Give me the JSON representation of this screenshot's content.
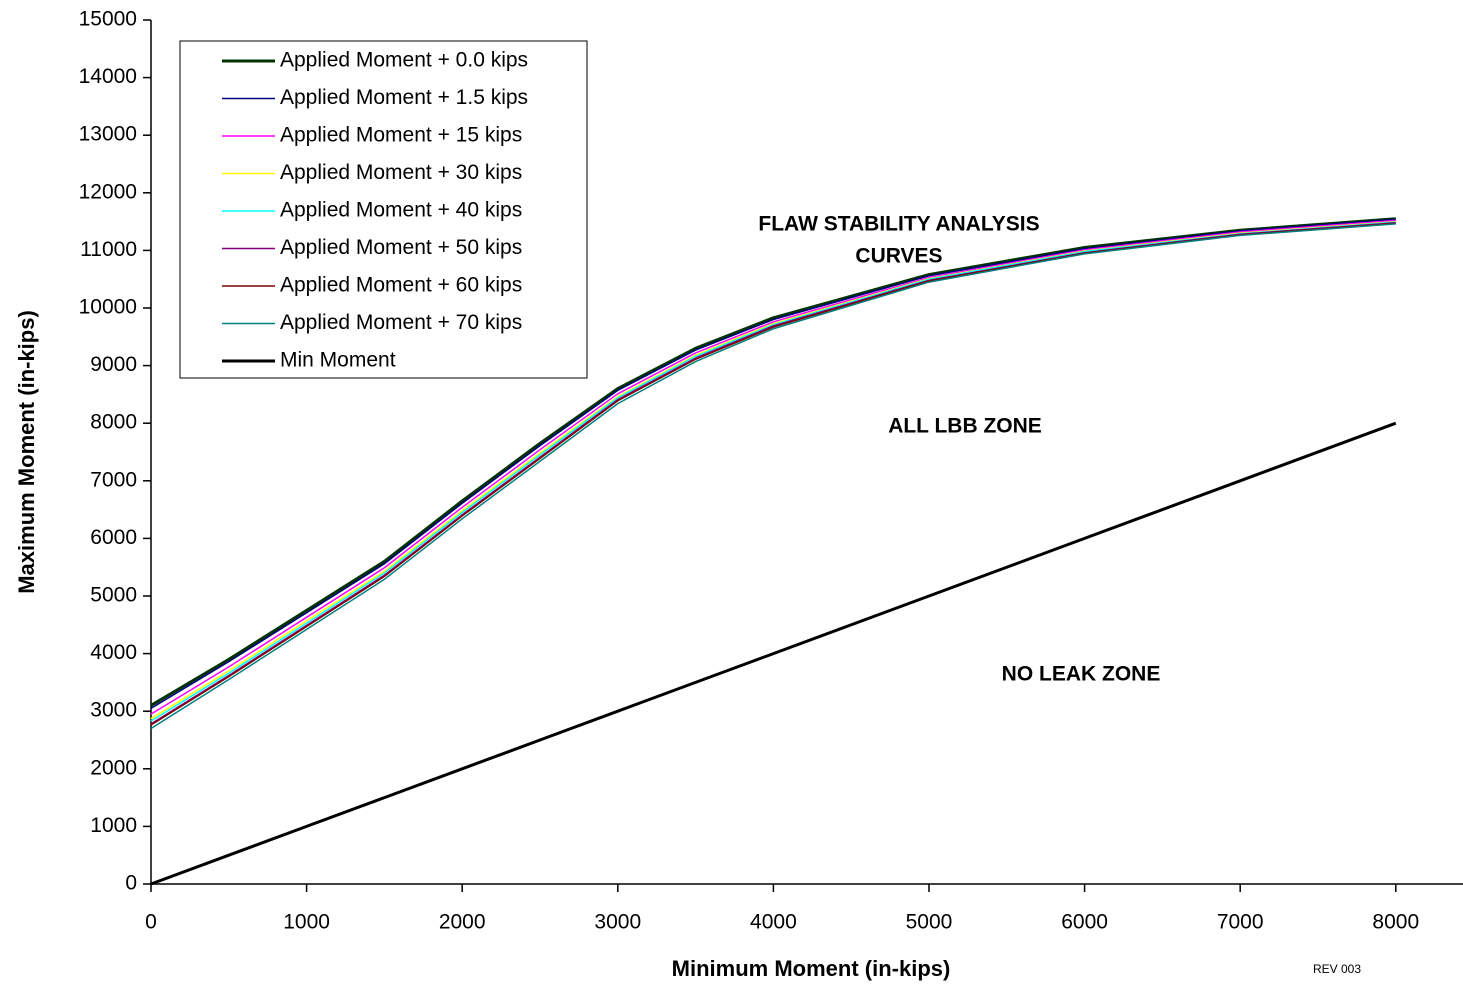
{
  "chart_data": {
    "type": "line",
    "x_label": "Minimum Moment (in-kips)",
    "y_label": "Maximum Moment (in-kips)",
    "xlim": [
      0,
      8432
    ],
    "ylim": [
      0,
      15000
    ],
    "xticks": [
      0,
      1000,
      2000,
      3000,
      4000,
      5000,
      6000,
      7000,
      8000
    ],
    "yticks": [
      0,
      1000,
      2000,
      3000,
      4000,
      5000,
      6000,
      7000,
      8000,
      9000,
      10000,
      11000,
      12000,
      13000,
      14000,
      15000
    ],
    "x": [
      0,
      500,
      1000,
      1500,
      2000,
      2500,
      3000,
      3500,
      4000,
      5000,
      6000,
      7000,
      8000
    ],
    "series": [
      {
        "name": "Applied Moment + 0.0 kips",
        "color": "#003300",
        "width": 3,
        "values": [
          3100,
          3900,
          4750,
          5600,
          6650,
          7650,
          8600,
          9300,
          9830,
          10580,
          11050,
          11350,
          11550
        ]
      },
      {
        "name": "Applied Moment + 1.5 kips",
        "color": "#000080",
        "width": 1.5,
        "values": [
          3050,
          3860,
          4710,
          5560,
          6610,
          7610,
          8570,
          9270,
          9800,
          10560,
          11030,
          11340,
          11540
        ]
      },
      {
        "name": "Applied Moment + 15 kips",
        "color": "#ff00ff",
        "width": 1.5,
        "values": [
          2950,
          3770,
          4630,
          5490,
          6540,
          7540,
          8510,
          9220,
          9760,
          10530,
          11010,
          11320,
          11520
        ]
      },
      {
        "name": "Applied Moment + 30 kips",
        "color": "#ffff00",
        "width": 1.5,
        "values": [
          2870,
          3700,
          4570,
          5430,
          6480,
          7480,
          8460,
          9180,
          9730,
          10510,
          10990,
          11300,
          11500
        ]
      },
      {
        "name": "Applied Moment + 40 kips",
        "color": "#00ffff",
        "width": 1.5,
        "values": [
          2830,
          3660,
          4530,
          5400,
          6450,
          7450,
          8440,
          9160,
          9710,
          10500,
          10980,
          11290,
          11490
        ]
      },
      {
        "name": "Applied Moment + 50 kips",
        "color": "#800080",
        "width": 1.5,
        "values": [
          2780,
          3620,
          4490,
          5360,
          6410,
          7410,
          8410,
          9130,
          9690,
          10480,
          10960,
          11280,
          11480
        ]
      },
      {
        "name": "Applied Moment + 60 kips",
        "color": "#800000",
        "width": 1.5,
        "values": [
          2760,
          3600,
          4470,
          5340,
          6390,
          7390,
          8390,
          9110,
          9670,
          10470,
          10950,
          11270,
          11470
        ]
      },
      {
        "name": "Applied Moment + 70 kips",
        "color": "#008080",
        "width": 1.5,
        "values": [
          2700,
          3550,
          4420,
          5290,
          6340,
          7340,
          8340,
          9070,
          9640,
          10450,
          10940,
          11260,
          11460
        ]
      },
      {
        "name": "Min Moment",
        "color": "#000000",
        "width": 3,
        "values": [
          0,
          500,
          1000,
          1500,
          2000,
          2500,
          3000,
          3500,
          4000,
          5000,
          6000,
          7000,
          8000
        ]
      }
    ],
    "legend": "upper-left",
    "annotations": [
      "FLAW STABILITY ANALYSIS",
      "CURVES",
      "ALL LBB ZONE",
      "NO LEAK ZONE",
      "REV 003"
    ]
  }
}
